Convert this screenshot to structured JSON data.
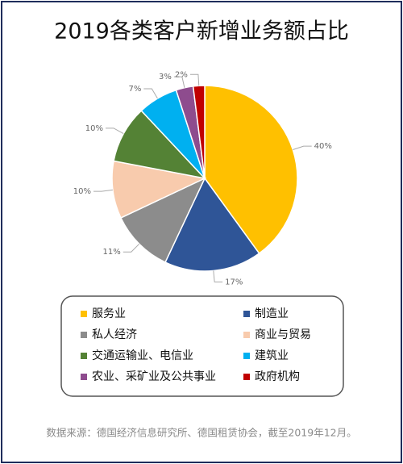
{
  "chart_data": {
    "type": "pie",
    "title": "2019各类客户新增业务额占比",
    "categories": [
      "服务业",
      "制造业",
      "私人经济",
      "商业与贸易",
      "交通运输业、电信业",
      "建筑业",
      "农业、采矿业及公共事业",
      "政府机构"
    ],
    "values": [
      40,
      17,
      11,
      10,
      10,
      7,
      3,
      2
    ],
    "value_labels": [
      "40%",
      "17%",
      "11%",
      "10%",
      "10%",
      "7%",
      "3%",
      "2%"
    ],
    "colors": [
      "#FFC000",
      "#2F5597",
      "#8C8C8C",
      "#F8CBAD",
      "#548235",
      "#00B0F0",
      "#8E4C8E",
      "#C00000"
    ],
    "source": "数据来源：德国经济信息研究所、德国租赁协会，截至2019年12月。"
  }
}
